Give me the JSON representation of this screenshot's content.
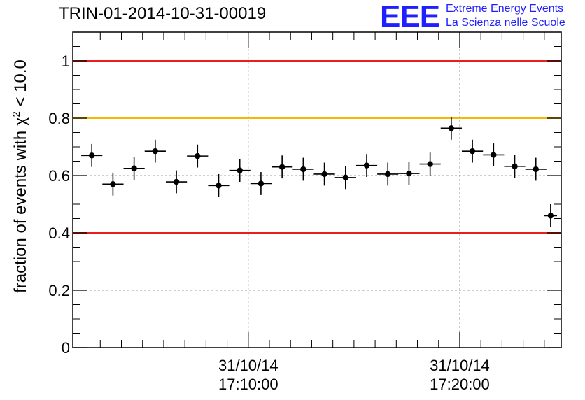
{
  "title": "TRIN-01-2014-10-31-00019",
  "logo": {
    "mark": "EEE",
    "line1": "Extreme Energy Events",
    "line2": "La Scienza nelle Scuole",
    "color": "#1f1fff"
  },
  "colors": {
    "limit_red": "#e8201c",
    "limit_orange": "#f5b800",
    "marker": "#000000"
  },
  "chart_data": {
    "type": "scatter",
    "title": "TRIN-01-2014-10-31-00019",
    "ylabel_prefix": "fraction of events with χ",
    "ylabel_sup": "2",
    "ylabel_suffix": " < 10.0",
    "ylim": [
      0,
      1.1
    ],
    "y_ticks": [
      "0",
      "0.2",
      "0.4",
      "0.6",
      "0.8",
      "1"
    ],
    "y_tick_values": [
      0,
      0.2,
      0.4,
      0.6,
      0.8,
      1.0
    ],
    "x_range_minutes": [
      -8.3,
      14.8
    ],
    "x_tick_labels": [
      {
        "minute": 0,
        "date": "31/10/14",
        "time": "17:10:00"
      },
      {
        "minute": 10,
        "date": "31/10/14",
        "time": "17:20:00"
      }
    ],
    "x_minor_tick_minutes": [
      -7,
      -6,
      -5,
      -4,
      -3,
      -2,
      -1,
      1,
      2,
      3,
      4,
      5,
      6,
      7,
      8,
      9,
      11,
      12,
      13,
      14
    ],
    "grid": true,
    "reference_lines": [
      {
        "y": 1.0,
        "color": "red"
      },
      {
        "y": 0.8,
        "color": "orange"
      },
      {
        "y": 0.4,
        "color": "red"
      }
    ],
    "points": [
      {
        "x": -7.4,
        "y": 0.67,
        "yerr": 0.04,
        "xerr": 0.5
      },
      {
        "x": -6.4,
        "y": 0.57,
        "yerr": 0.04,
        "xerr": 0.5
      },
      {
        "x": -5.4,
        "y": 0.625,
        "yerr": 0.04,
        "xerr": 0.5
      },
      {
        "x": -4.4,
        "y": 0.685,
        "yerr": 0.04,
        "xerr": 0.5
      },
      {
        "x": -3.4,
        "y": 0.578,
        "yerr": 0.04,
        "xerr": 0.5
      },
      {
        "x": -2.4,
        "y": 0.668,
        "yerr": 0.04,
        "xerr": 0.5
      },
      {
        "x": -1.4,
        "y": 0.565,
        "yerr": 0.04,
        "xerr": 0.5
      },
      {
        "x": -0.4,
        "y": 0.618,
        "yerr": 0.04,
        "xerr": 0.5
      },
      {
        "x": 0.6,
        "y": 0.572,
        "yerr": 0.04,
        "xerr": 0.5
      },
      {
        "x": 1.6,
        "y": 0.63,
        "yerr": 0.04,
        "xerr": 0.5
      },
      {
        "x": 2.6,
        "y": 0.622,
        "yerr": 0.04,
        "xerr": 0.5
      },
      {
        "x": 3.6,
        "y": 0.605,
        "yerr": 0.04,
        "xerr": 0.5
      },
      {
        "x": 4.6,
        "y": 0.593,
        "yerr": 0.04,
        "xerr": 0.5
      },
      {
        "x": 5.6,
        "y": 0.635,
        "yerr": 0.04,
        "xerr": 0.5
      },
      {
        "x": 6.6,
        "y": 0.605,
        "yerr": 0.04,
        "xerr": 0.5
      },
      {
        "x": 7.6,
        "y": 0.607,
        "yerr": 0.04,
        "xerr": 0.5
      },
      {
        "x": 8.6,
        "y": 0.64,
        "yerr": 0.04,
        "xerr": 0.5
      },
      {
        "x": 9.6,
        "y": 0.765,
        "yerr": 0.04,
        "xerr": 0.5
      },
      {
        "x": 10.6,
        "y": 0.685,
        "yerr": 0.04,
        "xerr": 0.5
      },
      {
        "x": 11.6,
        "y": 0.672,
        "yerr": 0.04,
        "xerr": 0.5
      },
      {
        "x": 12.6,
        "y": 0.632,
        "yerr": 0.04,
        "xerr": 0.5
      },
      {
        "x": 13.6,
        "y": 0.622,
        "yerr": 0.04,
        "xerr": 0.5
      },
      {
        "x": 14.3,
        "y": 0.46,
        "yerr": 0.04,
        "xerr": 0.3
      }
    ]
  }
}
